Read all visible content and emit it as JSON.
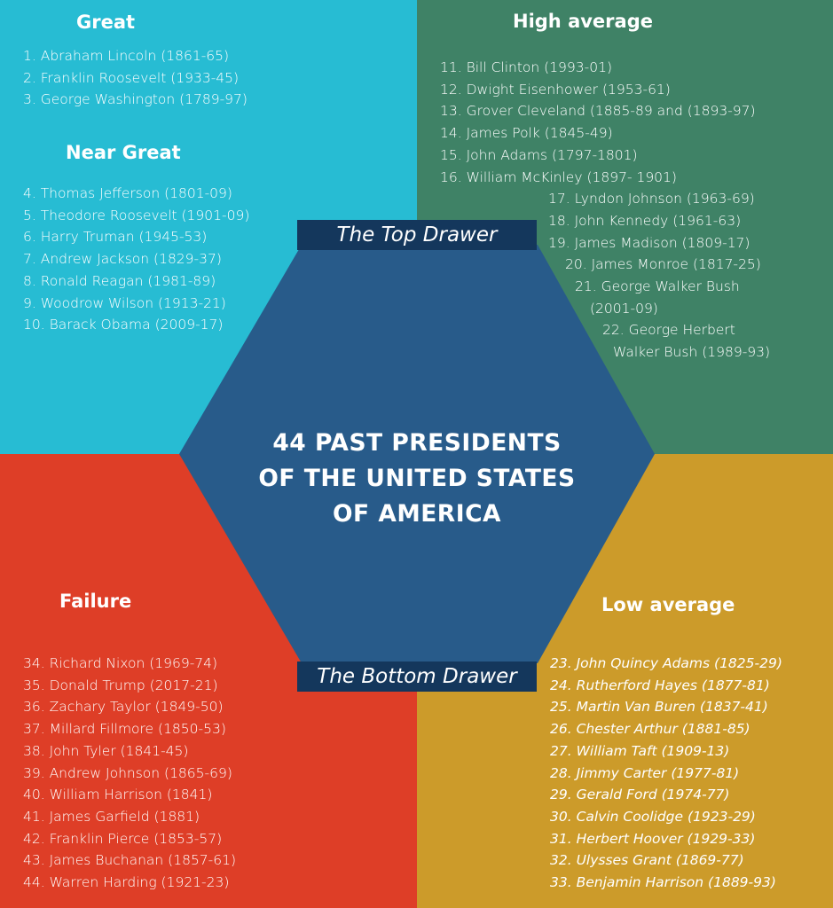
{
  "colors": {
    "great": "#27bcd3",
    "high_average": "#3f8266",
    "failure": "#de3e27",
    "low_average": "#cc9b2a",
    "hexagon": "#285b8a",
    "label_bar": "#14375c"
  },
  "title": [
    "44 PAST PRESIDENTS",
    "OF THE UNITED STATES",
    "OF AMERICA"
  ],
  "top_drawer_label": "The Top Drawer",
  "bottom_drawer_label": "The Bottom Drawer",
  "great": {
    "heading": "Great",
    "items": [
      "1. Abraham Lincoln (1861-65)",
      "2. Franklin Roosevelt (1933-45)",
      "3. George Washington (1789-97)"
    ]
  },
  "near_great": {
    "heading": "Near Great",
    "items": [
      "4. Thomas Jefferson (1801-09)",
      "5. Theodore Roosevelt (1901-09)",
      "6. Harry Truman (1945-53)",
      "7. Andrew Jackson (1829-37)",
      "8. Ronald Reagan (1981-89)",
      "9. Woodrow Wilson (1913-21)",
      "10. Barack Obama (2009-17)"
    ]
  },
  "high_average": {
    "heading": "High average",
    "items": [
      "11. Bill Clinton (1993-01)",
      "12. Dwight Eisenhower (1953-61)",
      "13. Grover Cleveland (1885-89 and (1893-97)",
      "14. James Polk (1845-49)",
      "15. John Adams (1797-1801)",
      "16. William McKinley (1897- 1901)",
      "17. Lyndon Johnson (1963-69)",
      "18. John Kennedy (1961-63)",
      "19. James Madison (1809-17)",
      "20. James Monroe (1817-25)",
      "21. George Walker Bush",
      "(2001-09)",
      "22. George Herbert",
      "Walker Bush (1989-93)"
    ]
  },
  "failure": {
    "heading": "Failure",
    "items": [
      "34. Richard Nixon (1969-74)",
      "35. Donald Trump (2017-21)",
      "36. Zachary Taylor (1849-50)",
      "37. Millard Fillmore (1850-53)",
      "38. John Tyler (1841-45)",
      "39. Andrew Johnson (1865-69)",
      "40. William Harrison (1841)",
      "41. James Garfield (1881)",
      "42. Franklin Pierce (1853-57)",
      "43. James Buchanan (1857-61)",
      "44. Warren Harding (1921-23)"
    ]
  },
  "low_average": {
    "heading": "Low average",
    "items": [
      "23. John Quincy Adams (1825-29)",
      "24. Rutherford Hayes (1877-81)",
      "25. Martin Van Buren (1837-41)",
      "26. Chester Arthur (1881-85)",
      "27. William Taft (1909-13)",
      "28. Jimmy Carter (1977-81)",
      "29. Gerald Ford (1974-77)",
      "30. Calvin Coolidge (1923-29)",
      "31. Herbert Hoover (1929-33)",
      "32. Ulysses Grant (1869-77)",
      "33. Benjamin Harrison (1889-93)"
    ]
  }
}
